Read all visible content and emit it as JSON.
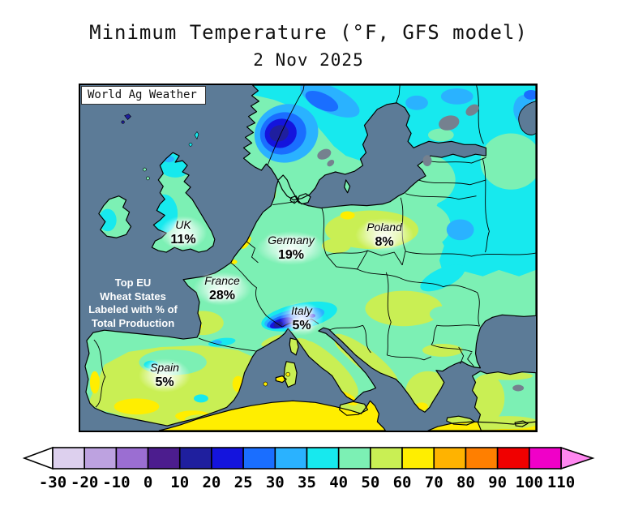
{
  "title": "Minimum Temperature (°F, GFS model)",
  "date": "2 Nov 2025",
  "map": {
    "watermark": "World Ag Weather",
    "annotation_lines": [
      "Top EU",
      "Wheat States",
      "Labeled with % of",
      "Total Production"
    ],
    "country_labels": [
      {
        "name": "UK",
        "value": "11%"
      },
      {
        "name": "France",
        "value": "28%"
      },
      {
        "name": "Germany",
        "value": "19%"
      },
      {
        "name": "Poland",
        "value": "8%"
      },
      {
        "name": "Italy",
        "value": "5%"
      },
      {
        "name": "Spain",
        "value": "5%"
      }
    ],
    "colors": {
      "ocean": "#5c7b97",
      "lake": "#75818f",
      "land_base": "#7cf0b4"
    }
  },
  "chart_data": {
    "type": "heatmap",
    "title": "Minimum Temperature (°F, GFS model)",
    "subtitle": "2 Nov 2025",
    "units": "°F",
    "colorbar": {
      "ticks": [
        "-30",
        "-20",
        "-10",
        "0",
        "10",
        "20",
        "25",
        "30",
        "35",
        "40",
        "50",
        "60",
        "70",
        "80",
        "90",
        "100",
        "110"
      ],
      "colors": [
        "#ddd0ee",
        "#bda2e0",
        "#9b6ed2",
        "#4c1d8e",
        "#1f1f9e",
        "#1414dd",
        "#1a6eff",
        "#2ab2ff",
        "#17e9ee",
        "#7cf0b4",
        "#c9ef54",
        "#ffee00",
        "#ffb300",
        "#ff7f00",
        "#f00000",
        "#f000c8"
      ],
      "arrow_left_color": "#ffffff",
      "arrow_right_color": "#ff87f0"
    },
    "labeled_regions": [
      {
        "region": "UK",
        "share_of_production": "11%"
      },
      {
        "region": "France",
        "share_of_production": "28%"
      },
      {
        "region": "Germany",
        "share_of_production": "19%"
      },
      {
        "region": "Poland",
        "share_of_production": "8%"
      },
      {
        "region": "Italy",
        "share_of_production": "5%"
      },
      {
        "region": "Spain",
        "share_of_production": "5%"
      }
    ]
  }
}
